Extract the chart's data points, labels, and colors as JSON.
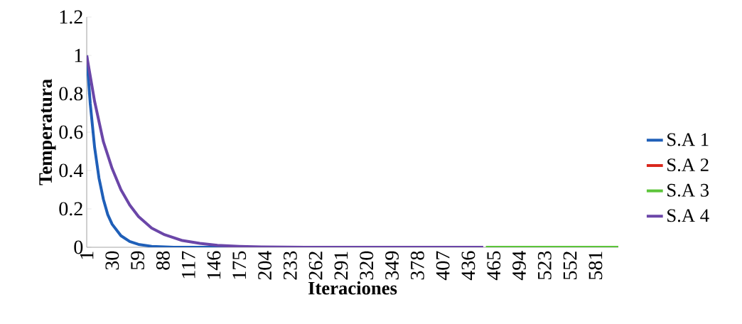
{
  "chart_data": {
    "type": "line",
    "xlabel": "Iteraciones",
    "ylabel": "Temperatura",
    "xlim": [
      1,
      607
    ],
    "xticks": [
      1,
      30,
      59,
      88,
      117,
      146,
      175,
      204,
      233,
      262,
      291,
      320,
      349,
      378,
      407,
      436,
      465,
      494,
      523,
      552,
      581
    ],
    "ylim": [
      0,
      1.2
    ],
    "yticks": [
      0,
      0.2,
      0.4,
      0.6,
      0.8,
      1,
      1.2
    ],
    "grid": false,
    "legend": "right",
    "marker": "none",
    "line_style": "solid",
    "series": [
      {
        "name": "S.A 1",
        "color": "#1f5fb8",
        "x": [
          1,
          5,
          10,
          15,
          20,
          25,
          30,
          40,
          50,
          60,
          75,
          100,
          300
        ],
        "values": [
          1,
          0.75,
          0.52,
          0.36,
          0.25,
          0.17,
          0.12,
          0.06,
          0.03,
          0.015,
          0.005,
          0,
          0
        ]
      },
      {
        "name": "S.A 2",
        "color": "#d9261c"
      },
      {
        "name": "S.A 3",
        "color": "#5cc43a",
        "x": [
          456,
          607
        ],
        "values": [
          0,
          0
        ]
      },
      {
        "name": "S.A 4",
        "color": "#6b46a8",
        "x": [
          1,
          10,
          20,
          30,
          40,
          50,
          60,
          75,
          90,
          110,
          130,
          150,
          175,
          200,
          250,
          350,
          453
        ],
        "values": [
          1,
          0.76,
          0.55,
          0.41,
          0.3,
          0.22,
          0.16,
          0.1,
          0.065,
          0.035,
          0.02,
          0.01,
          0.005,
          0.002,
          0,
          0,
          0
        ]
      }
    ]
  }
}
